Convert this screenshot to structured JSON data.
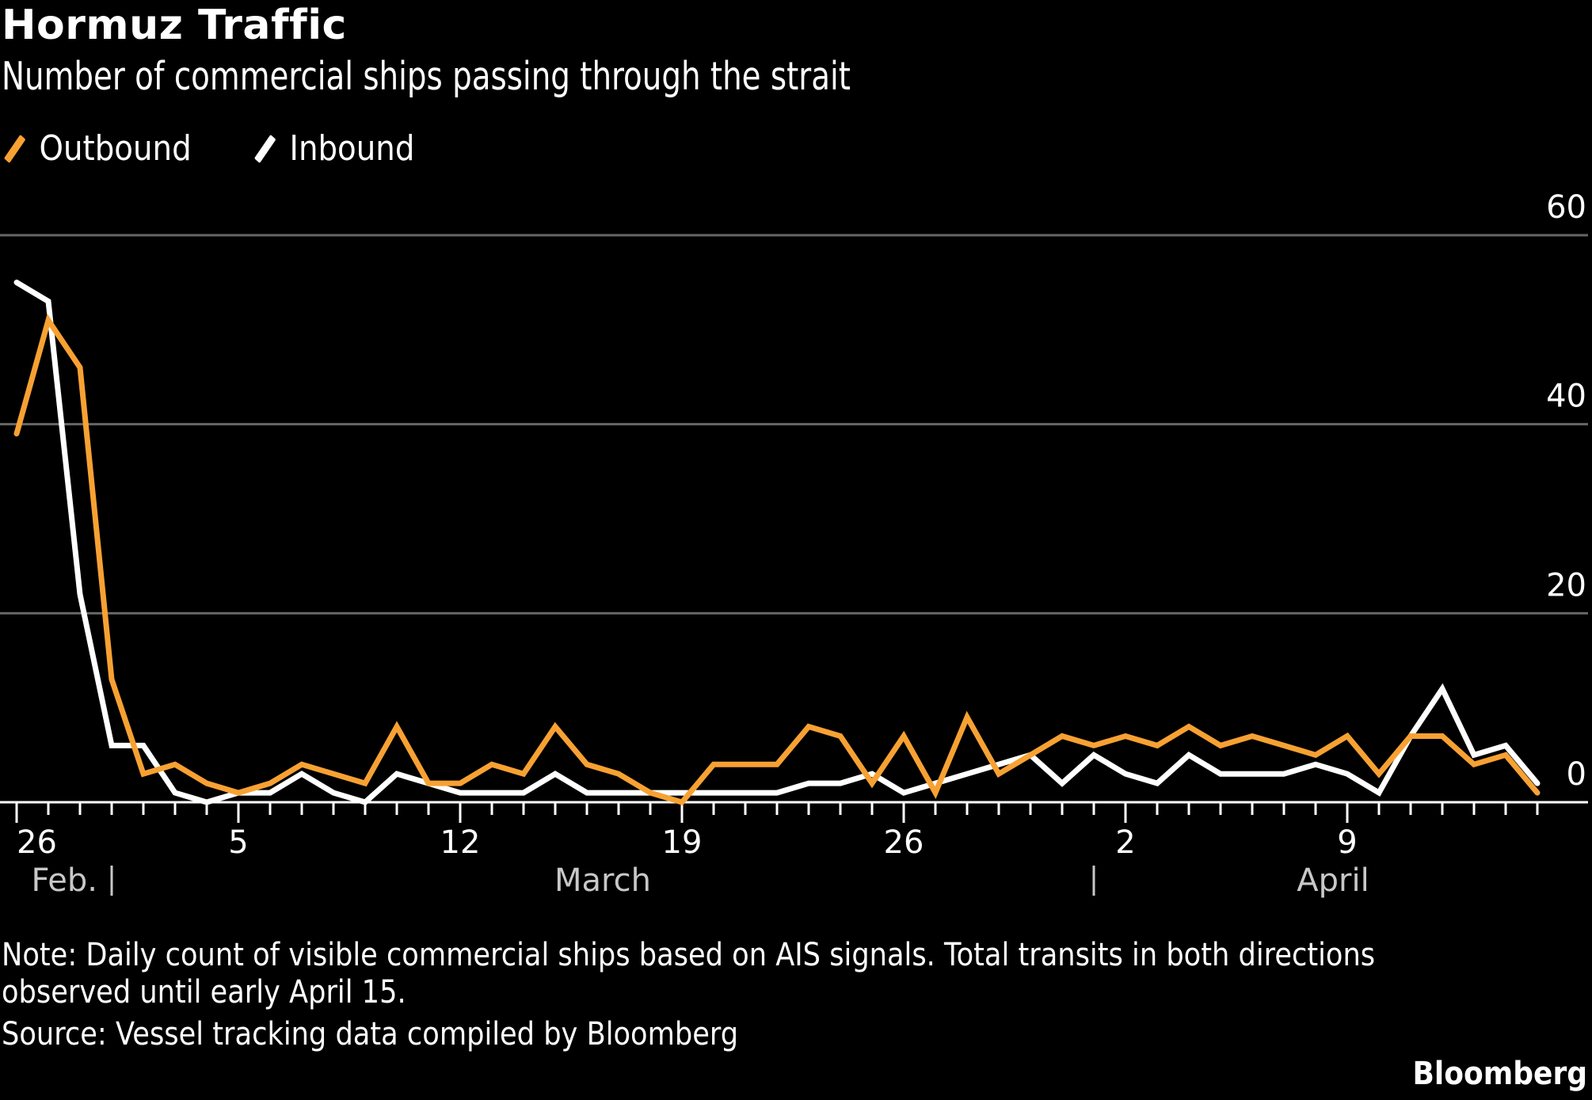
{
  "header": {
    "title": "Hormuz Traffic",
    "subtitle": "Number of commercial ships passing through the strait"
  },
  "legend": [
    {
      "label": "Outbound",
      "color": "#f7a133"
    },
    {
      "label": "Inbound",
      "color": "#ffffff"
    }
  ],
  "footer": {
    "note": "Note: Daily count of visible commercial ships based on AIS signals. Total transits in both directions\nobserved until early April 15.",
    "source": "Source: Vessel tracking data compiled by Bloomberg",
    "brand": "Bloomberg"
  },
  "colors": {
    "background": "#000000",
    "outbound": "#f7a133",
    "inbound": "#ffffff",
    "gridline": "#666666",
    "axis": "#ffffff",
    "month_label": "#c8c8c8"
  },
  "chart_data": {
    "type": "line",
    "title": "Hormuz Traffic",
    "subtitle": "Number of commercial ships passing through the strait",
    "xlabel": "",
    "ylabel": "",
    "ylim": [
      0,
      60
    ],
    "yticks": [
      0,
      20,
      40,
      60
    ],
    "y_axis_position": "right",
    "grid": true,
    "legend_position": "top-left",
    "x_start": "Feb 26",
    "x_end": "Apr 15",
    "x": [
      "Feb 26",
      "Feb 27",
      "Feb 28",
      "Mar 1",
      "Mar 2",
      "Mar 3",
      "Mar 4",
      "Mar 5",
      "Mar 6",
      "Mar 7",
      "Mar 8",
      "Mar 9",
      "Mar 10",
      "Mar 11",
      "Mar 12",
      "Mar 13",
      "Mar 14",
      "Mar 15",
      "Mar 16",
      "Mar 17",
      "Mar 18",
      "Mar 19",
      "Mar 20",
      "Mar 21",
      "Mar 22",
      "Mar 23",
      "Mar 24",
      "Mar 25",
      "Mar 26",
      "Mar 27",
      "Mar 28",
      "Mar 29",
      "Mar 30",
      "Mar 31",
      "Apr 1",
      "Apr 2",
      "Apr 3",
      "Apr 4",
      "Apr 5",
      "Apr 6",
      "Apr 7",
      "Apr 8",
      "Apr 9",
      "Apr 10",
      "Apr 11",
      "Apr 12",
      "Apr 13",
      "Apr 14",
      "Apr 15"
    ],
    "x_tick_labels": [
      {
        "label": "26",
        "index": 0
      },
      {
        "label": "5",
        "index": 7
      },
      {
        "label": "12",
        "index": 14
      },
      {
        "label": "19",
        "index": 21
      },
      {
        "label": "26",
        "index": 28
      },
      {
        "label": "2",
        "index": 35
      },
      {
        "label": "9",
        "index": 42
      }
    ],
    "month_labels": [
      {
        "label": "Feb.",
        "separator_index": 3,
        "align": "before"
      },
      {
        "label": "March",
        "center_index": 18
      },
      {
        "label": "April",
        "separator_index": 34,
        "center_index": 41
      }
    ],
    "series": [
      {
        "name": "Outbound",
        "color": "#f7a133",
        "values": [
          39,
          51,
          46,
          13,
          3,
          4,
          2,
          1,
          2,
          4,
          3,
          2,
          8,
          2,
          2,
          4,
          3,
          8,
          4,
          3,
          1,
          0,
          4,
          4,
          4,
          8,
          7,
          2,
          7,
          1,
          9,
          3,
          5,
          7,
          6,
          7,
          6,
          8,
          6,
          7,
          6,
          5,
          7,
          3,
          7,
          7,
          4,
          5,
          1
        ]
      },
      {
        "name": "Inbound",
        "color": "#ffffff",
        "values": [
          55,
          53,
          22,
          6,
          6,
          1,
          0,
          1,
          1,
          3,
          1,
          0,
          3,
          2,
          1,
          1,
          1,
          3,
          1,
          1,
          1,
          1,
          1,
          1,
          1,
          2,
          2,
          3,
          1,
          2,
          3,
          4,
          5,
          2,
          5,
          3,
          2,
          5,
          3,
          3,
          3,
          4,
          3,
          1,
          7,
          12,
          5,
          6,
          2
        ]
      }
    ]
  }
}
